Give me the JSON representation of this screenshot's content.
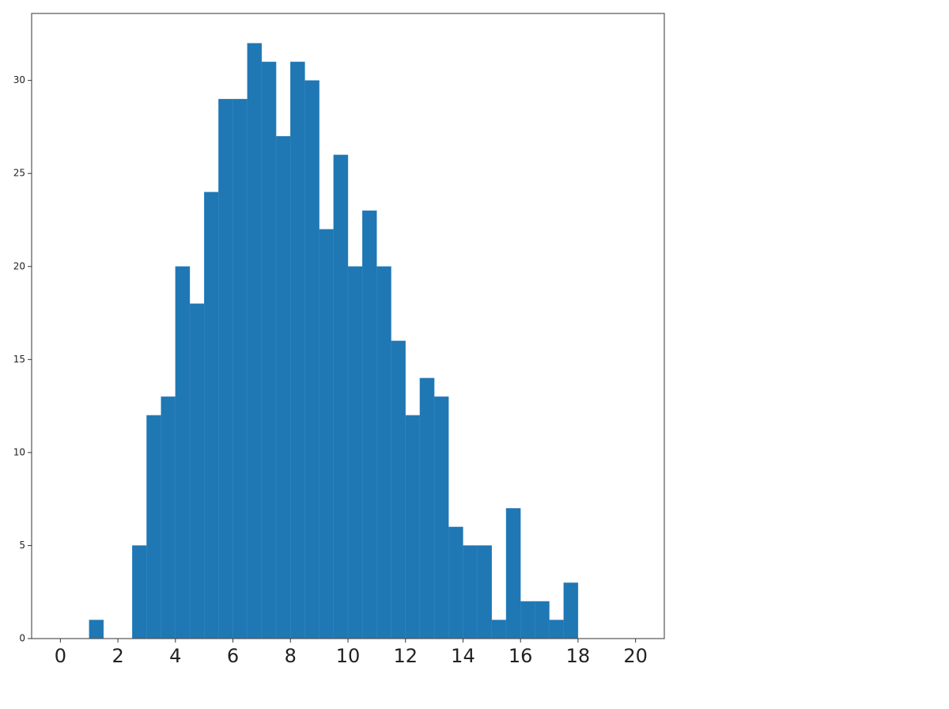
{
  "chart_data": {
    "type": "histogram",
    "color": "#1f77b4",
    "bins": [
      0,
      0.5,
      1,
      1.5,
      2,
      2.5,
      3,
      3.5,
      4,
      4.5,
      5,
      5.5,
      6,
      6.5,
      7,
      7.5,
      8,
      8.5,
      9,
      9.5,
      10,
      10.5,
      11,
      11.5,
      12,
      12.5,
      13,
      13.5,
      14,
      14.5,
      15,
      15.5,
      16,
      16.5,
      17,
      17.5,
      18
    ],
    "values": [
      0,
      0,
      1,
      0,
      0,
      5,
      12,
      13,
      20,
      18,
      24,
      29,
      29,
      32,
      31,
      27,
      31,
      30,
      22,
      26,
      20,
      23,
      20,
      16,
      12,
      14,
      13,
      6,
      5,
      5,
      1,
      7,
      2,
      2,
      1,
      3
    ],
    "xlim": [
      -1,
      21
    ],
    "xticks": [
      0,
      2,
      4,
      6,
      8,
      10,
      12,
      14,
      16,
      18,
      20
    ],
    "ylim": [
      0,
      33.6
    ],
    "yticks": [
      0,
      5,
      10,
      15,
      20,
      25,
      30
    ]
  }
}
